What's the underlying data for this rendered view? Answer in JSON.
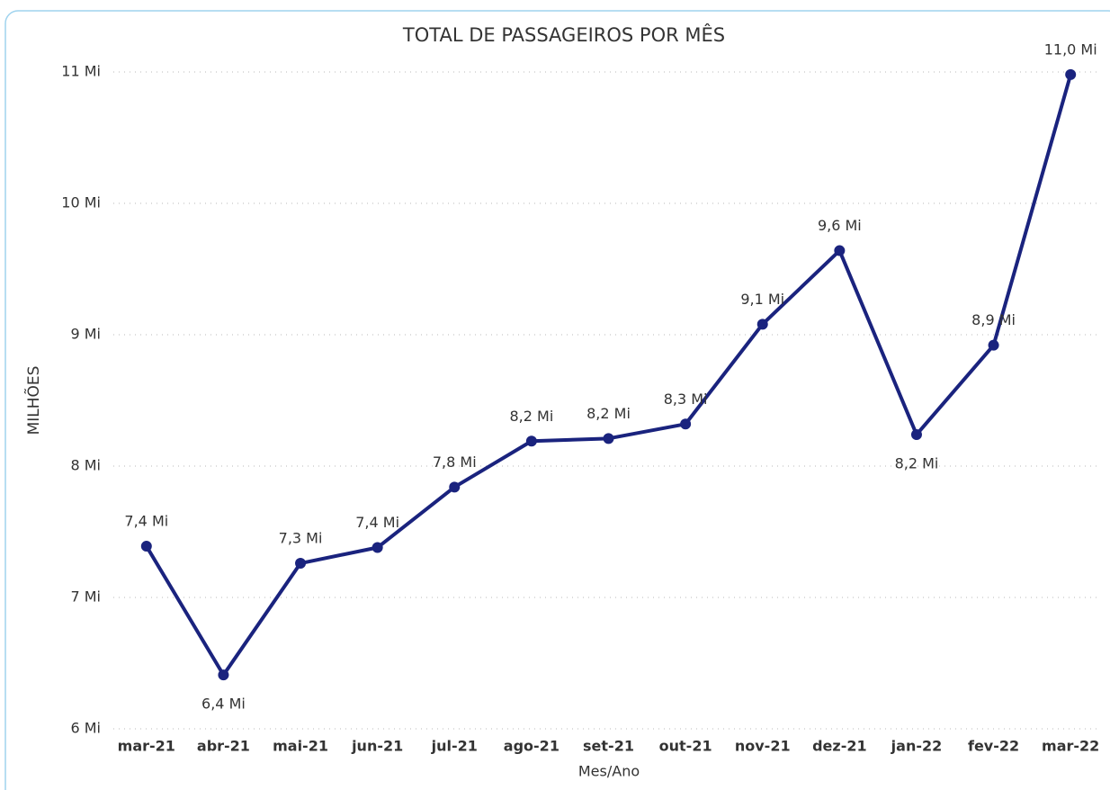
{
  "chart_data": {
    "type": "line",
    "title": "TOTAL DE PASSAGEIROS POR MÊS",
    "x_label": "Mes/Ano",
    "y_label": "MILHÕES",
    "categories": [
      "mar-21",
      "abr-21",
      "mai-21",
      "jun-21",
      "jul-21",
      "ago-21",
      "set-21",
      "out-21",
      "nov-21",
      "dez-21",
      "jan-22",
      "fev-22",
      "mar-22"
    ],
    "series": [
      {
        "name": "Total de Passageiros",
        "color": "#1a237e",
        "values": [
          7.39,
          6.41,
          7.26,
          7.38,
          7.84,
          8.19,
          8.21,
          8.32,
          9.08,
          9.64,
          8.24,
          8.92,
          10.98
        ],
        "value_labels": [
          "7,4 Mi",
          "6,4 Mi",
          "7,3 Mi",
          "7,4 Mi",
          "7,8 Mi",
          "8,2 Mi",
          "8,2 Mi",
          "8,3 Mi",
          "9,1 Mi",
          "9,6 Mi",
          "8,2 Mi",
          "8,9 Mi",
          "11,0 Mi"
        ]
      }
    ],
    "ylim": [
      6,
      11
    ],
    "yticks": [
      {
        "value": 6,
        "label": "6 Mi"
      },
      {
        "value": 7,
        "label": "7 Mi"
      },
      {
        "value": 8,
        "label": "8 Mi"
      },
      {
        "value": 9,
        "label": "9 Mi"
      },
      {
        "value": 10,
        "label": "10 Mi"
      },
      {
        "value": 11,
        "label": "11 Mi"
      }
    ],
    "grid": true
  }
}
